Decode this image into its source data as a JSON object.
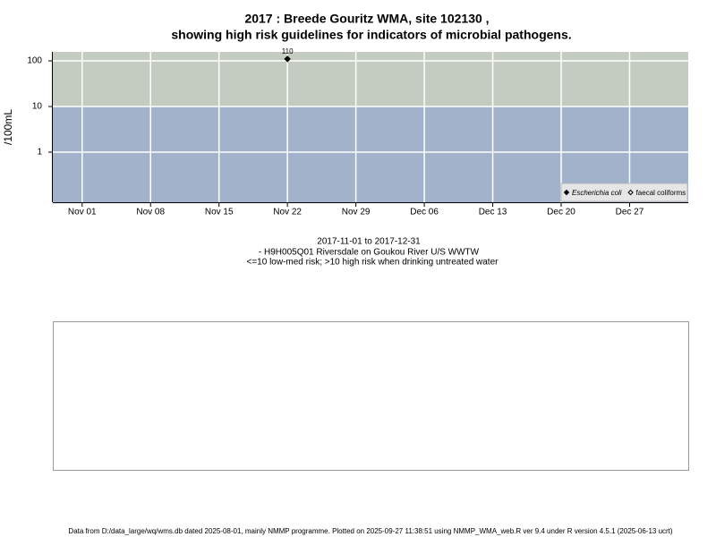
{
  "chart_data": {
    "type": "scatter",
    "title": [
      "2017 : Breede Gouritz WMA, site 102130 ,",
      "showing high risk guidelines for indicators of microbial pathogens."
    ],
    "y_label": "/100mL",
    "log_y": true,
    "grid": true,
    "legend_position": "bottom-right",
    "threshold": 10,
    "band_colors": {
      "below": "#a2b2cb",
      "above": "#c4ccc1"
    },
    "x": [
      "2017-11-22"
    ],
    "xlim": [
      "2017-10-29",
      "2018-01-02"
    ],
    "xticks": [
      {
        "value": "2017-11-01",
        "label": "Nov 01"
      },
      {
        "value": "2017-11-08",
        "label": "Nov 08"
      },
      {
        "value": "2017-11-15",
        "label": "Nov 15"
      },
      {
        "value": "2017-11-22",
        "label": "Nov 22"
      },
      {
        "value": "2017-11-29",
        "label": "Nov 29"
      },
      {
        "value": "2017-12-06",
        "label": "Dec 06"
      },
      {
        "value": "2017-12-13",
        "label": "Dec 13"
      },
      {
        "value": "2017-12-20",
        "label": "Dec 20"
      },
      {
        "value": "2017-12-27",
        "label": "Dec 27"
      }
    ],
    "ylim": [
      0.08,
      157
    ],
    "yticks": [
      1,
      10,
      100
    ],
    "series": [
      {
        "name": "Escherichia coli",
        "color": "#000000",
        "marker": "filled-diamond",
        "values": [
          110
        ]
      },
      {
        "name": "faecal coliforms",
        "color": "#000000",
        "marker": "open-diamond",
        "values": [
          null
        ]
      }
    ],
    "notes": [
      "2017-11-01 to 2017-12-31",
      "- H9H005Q01 Riversdale on Goukou River U/S WWTW",
      "<=10 low-med risk; >10 high risk when drinking untreated water"
    ]
  },
  "footer": "Data from D:/data_large/wq/wms.db dated 2025-08-01, mainly NMMP programme. Plotted on 2025-09-27 11:38:51 using NMMP_WMA_web.R ver 9.4 under R version 4.5.1 (2025-06-13 ucrt)"
}
